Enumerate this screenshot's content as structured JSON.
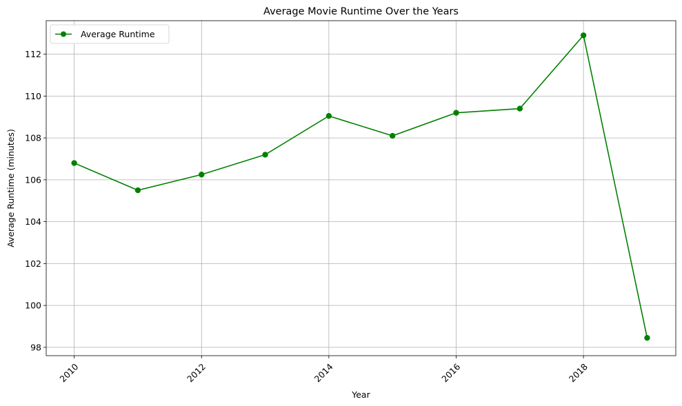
{
  "chart_data": {
    "type": "line",
    "title": "Average Movie Runtime Over the Years",
    "xlabel": "Year",
    "ylabel": "Average Runtime (minutes)",
    "xlim": [
      2009.56,
      2019.45
    ],
    "ylim": [
      97.6,
      113.6
    ],
    "xticks": [
      2010,
      2012,
      2014,
      2016,
      2018
    ],
    "yticks": [
      98,
      100,
      102,
      104,
      106,
      108,
      110,
      112
    ],
    "grid": true,
    "legend": "top-left",
    "series": [
      {
        "name": "Average Runtime",
        "color": "#008000",
        "marker": "circle",
        "x": [
          2010,
          2011,
          2012,
          2013,
          2014,
          2015,
          2016,
          2017,
          2018,
          2019
        ],
        "y": [
          106.8,
          105.5,
          106.25,
          107.2,
          109.05,
          108.1,
          109.2,
          109.4,
          112.9,
          98.45
        ]
      }
    ]
  }
}
